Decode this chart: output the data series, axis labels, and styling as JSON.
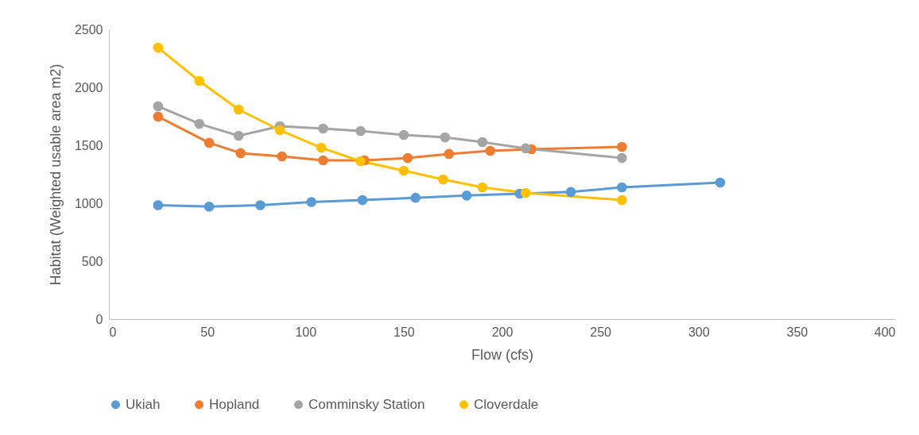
{
  "chart_data": {
    "type": "line",
    "xlabel": "Flow (cfs)",
    "ylabel": "Habitat (Weighted usable area m2)",
    "xlim": [
      0,
      400
    ],
    "xticks": [
      0,
      50,
      100,
      150,
      200,
      250,
      300,
      350,
      400
    ],
    "ylim": [
      0,
      2500
    ],
    "yticks": [
      0,
      500,
      1000,
      1500,
      2000,
      2500
    ],
    "grid": false,
    "legend": "bottom",
    "marker": "circle",
    "line_style": "solid",
    "series": [
      {
        "name": "Ukiah",
        "color": "#5b9bd5",
        "x": [
          25,
          51,
          77,
          103,
          129,
          156,
          182,
          209,
          235,
          261,
          311
        ],
        "values": [
          983,
          971,
          983,
          1010,
          1027,
          1047,
          1066,
          1082,
          1097,
          1137,
          1178
        ]
      },
      {
        "name": "Hopland",
        "color": "#ed7d31",
        "x": [
          25,
          51,
          67,
          88,
          109,
          130,
          152,
          173,
          194,
          215,
          261
        ],
        "values": [
          1747,
          1521,
          1432,
          1404,
          1370,
          1370,
          1390,
          1425,
          1452,
          1466,
          1486
        ]
      },
      {
        "name": "Comminsky Station",
        "color": "#a5a5a5",
        "x": [
          25,
          46,
          66,
          87,
          109,
          128,
          150,
          171,
          190,
          212,
          261
        ],
        "values": [
          1836,
          1685,
          1582,
          1664,
          1644,
          1623,
          1589,
          1568,
          1527,
          1473,
          1390
        ]
      },
      {
        "name": "Cloverdale",
        "color": "#ffc000",
        "x": [
          25,
          46,
          66,
          87,
          108,
          128,
          150,
          170,
          190,
          212,
          261
        ],
        "values": [
          2342,
          2055,
          1808,
          1630,
          1479,
          1363,
          1281,
          1205,
          1137,
          1089,
          1027
        ]
      }
    ]
  }
}
